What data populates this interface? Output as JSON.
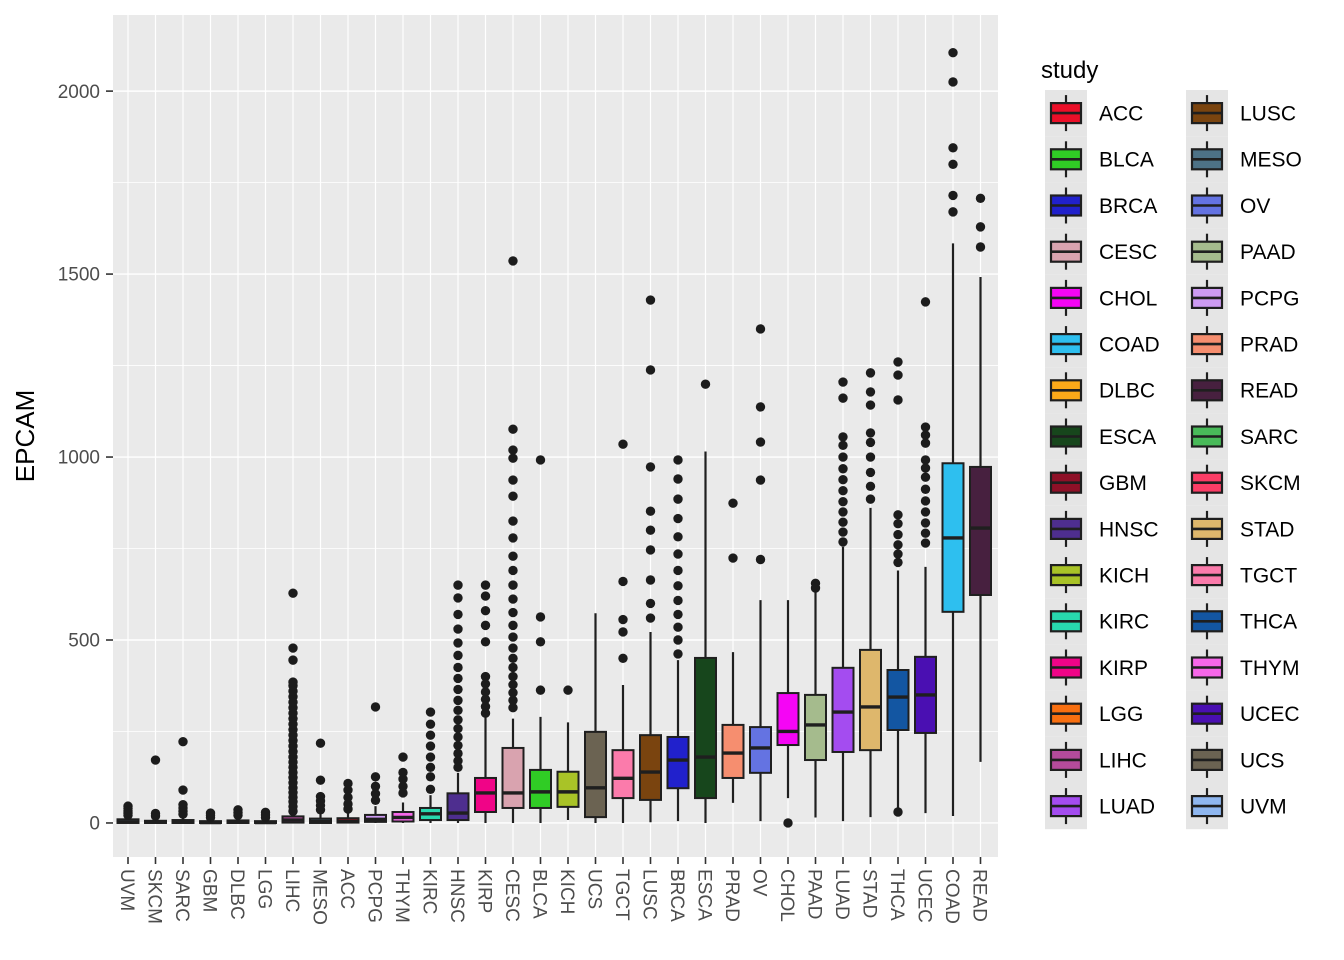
{
  "chart_data": {
    "type": "boxplot",
    "title": "",
    "xlabel": "",
    "ylabel": "EPCAM",
    "legend_title": "study",
    "legend_position": "right",
    "ylim": [
      -93,
      2208
    ],
    "yticks": [
      0,
      500,
      1000,
      1500,
      2000
    ],
    "yminor": [
      250,
      750,
      1250,
      1750
    ],
    "grid": true,
    "panel_background": "#EAEAEA",
    "grid_color": "#FFFFFF",
    "legend_key_background": "#E5E5E5",
    "box_stroke_color": "#1F1F1F",
    "outlier_color": "#1C1C1C",
    "axis_text_color": "#4D4D4D",
    "axis_title_color": "#000000",
    "studies": [
      {
        "label": "UVM",
        "color": "#8FB7F0",
        "whisker_low": 0,
        "q1": 0,
        "median": 3,
        "q3": 10,
        "whisker_high": 20,
        "outliers": [
          21,
          27,
          33,
          40,
          46
        ]
      },
      {
        "label": "SKCM",
        "color": "#FB3D66",
        "whisker_low": 0,
        "q1": 0,
        "median": 2,
        "q3": 6,
        "whisker_high": 13,
        "outliers": [
          19,
          26,
          172
        ]
      },
      {
        "label": "SARC",
        "color": "#49BA59",
        "whisker_low": 0,
        "q1": 0,
        "median": 2,
        "q3": 8,
        "whisker_high": 17,
        "outliers": [
          24,
          32,
          41,
          50,
          90,
          222
        ]
      },
      {
        "label": "GBM",
        "color": "#8E1027",
        "whisker_low": 0,
        "q1": 0,
        "median": 1,
        "q3": 5,
        "whisker_high": 11,
        "outliers": [
          15,
          21,
          27
        ]
      },
      {
        "label": "DLBC",
        "color": "#FBA919",
        "whisker_low": 0,
        "q1": 0,
        "median": 2,
        "q3": 7,
        "whisker_high": 15,
        "outliers": [
          21,
          28,
          36
        ]
      },
      {
        "label": "LGG",
        "color": "#F86F10",
        "whisker_low": 0,
        "q1": 0,
        "median": 1,
        "q3": 5,
        "whisker_high": 11,
        "outliers": [
          15,
          22,
          29
        ]
      },
      {
        "label": "LIHC",
        "color": "#B44B9B",
        "whisker_low": 0,
        "q1": 1,
        "median": 8,
        "q3": 18,
        "whisker_high": 30,
        "outliers": [
          32,
          45,
          58,
          70,
          83,
          96,
          110,
          124,
          138,
          152,
          166,
          180,
          195,
          210,
          225,
          240,
          255,
          270,
          285,
          300,
          315,
          330,
          345,
          360,
          375,
          385,
          445,
          478,
          628
        ]
      },
      {
        "label": "MESO",
        "color": "#4D7286",
        "whisker_low": 0,
        "q1": 0,
        "median": 4,
        "q3": 12,
        "whisker_high": 26,
        "outliers": [
          36,
          48,
          60,
          72,
          117,
          218
        ]
      },
      {
        "label": "ACC",
        "color": "#EB0F28",
        "whisker_low": 0,
        "q1": 1,
        "median": 5,
        "q3": 13,
        "whisker_high": 27,
        "outliers": [
          38,
          52,
          70,
          90,
          108
        ]
      },
      {
        "label": "PCPG",
        "color": "#CD9BF2",
        "whisker_low": 0,
        "q1": 3,
        "median": 10,
        "q3": 22,
        "whisker_high": 46,
        "outliers": [
          62,
          80,
          100,
          126,
          317
        ]
      },
      {
        "label": "THYM",
        "color": "#F667E9",
        "whisker_low": 0,
        "q1": 4,
        "median": 15,
        "q3": 30,
        "whisker_high": 56,
        "outliers": [
          82,
          100,
          120,
          138,
          180
        ]
      },
      {
        "label": "KIRC",
        "color": "#28D8AE",
        "whisker_low": 0,
        "q1": 8,
        "median": 25,
        "q3": 41,
        "whisker_high": 76,
        "outliers": [
          92,
          126,
          152,
          180,
          210,
          240,
          270,
          303
        ]
      },
      {
        "label": "HNSC",
        "color": "#4E2E8F",
        "whisker_low": 0,
        "q1": 8,
        "median": 27,
        "q3": 81,
        "whisker_high": 137,
        "outliers": [
          152,
          170,
          190,
          212,
          235,
          258,
          282,
          308,
          335,
          365,
          395,
          425,
          458,
          492,
          530,
          570,
          615,
          650
        ]
      },
      {
        "label": "KIRP",
        "color": "#F00487",
        "whisker_low": 0,
        "q1": 30,
        "median": 82,
        "q3": 123,
        "whisker_high": 290,
        "outliers": [
          300,
          318,
          338,
          358,
          380,
          400,
          495,
          540,
          580,
          620,
          650
        ]
      },
      {
        "label": "CESC",
        "color": "#D9A3AF",
        "whisker_low": 0,
        "q1": 41,
        "median": 82,
        "q3": 205,
        "whisker_high": 285,
        "outliers": [
          315,
          335,
          356,
          378,
          400,
          425,
          450,
          478,
          508,
          540,
          575,
          612,
          650,
          690,
          729,
          779,
          825,
          893,
          937,
          997,
          1019,
          1076,
          1536
        ]
      },
      {
        "label": "BLCA",
        "color": "#30CC25",
        "whisker_low": 0,
        "q1": 41,
        "median": 85,
        "q3": 145,
        "whisker_high": 290,
        "outliers": [
          363,
          495,
          563,
          992
        ]
      },
      {
        "label": "KICH",
        "color": "#A9C327",
        "whisker_low": 8,
        "q1": 44,
        "median": 85,
        "q3": 140,
        "whisker_high": 275,
        "outliers": [
          363
        ]
      },
      {
        "label": "UCS",
        "color": "#6B6352",
        "whisker_low": 0,
        "q1": 16,
        "median": 96,
        "q3": 249,
        "whisker_high": 573,
        "outliers": []
      },
      {
        "label": "TGCT",
        "color": "#FB7BAB",
        "whisker_low": 0,
        "q1": 68,
        "median": 122,
        "q3": 199,
        "whisker_high": 377,
        "outliers": [
          450,
          522,
          556,
          660,
          1035
        ]
      },
      {
        "label": "LUSC",
        "color": "#7A440F",
        "whisker_low": 2,
        "q1": 63,
        "median": 139,
        "q3": 240,
        "whisker_high": 522,
        "outliers": [
          560,
          600,
          664,
          746,
          800,
          852,
          973,
          1238,
          1429
        ]
      },
      {
        "label": "BRCA",
        "color": "#2121CC",
        "whisker_low": 5,
        "q1": 95,
        "median": 172,
        "q3": 235,
        "whisker_high": 445,
        "outliers": [
          462,
          500,
          535,
          570,
          608,
          648,
          690,
          735,
          782,
          832,
          885,
          940,
          992
        ]
      },
      {
        "label": "ESCA",
        "color": "#17461C",
        "whisker_low": 0,
        "q1": 68,
        "median": 180,
        "q3": 451,
        "whisker_high": 1015,
        "outliers": [
          1199
        ]
      },
      {
        "label": "PRAD",
        "color": "#F68E6F",
        "whisker_low": 55,
        "q1": 123,
        "median": 191,
        "q3": 268,
        "whisker_high": 467,
        "outliers": [
          724,
          874
        ]
      },
      {
        "label": "OV",
        "color": "#6473E2",
        "whisker_low": 5,
        "q1": 137,
        "median": 205,
        "q3": 262,
        "whisker_high": 609,
        "outliers": [
          720,
          937,
          1041,
          1137,
          1350
        ]
      },
      {
        "label": "CHOL",
        "color": "#F505F5",
        "whisker_low": 68,
        "q1": 213,
        "median": 250,
        "q3": 355,
        "whisker_high": 609,
        "outliers": [
          0
        ]
      },
      {
        "label": "PAAD",
        "color": "#A5BB8D",
        "whisker_low": 15,
        "q1": 172,
        "median": 268,
        "q3": 350,
        "whisker_high": 637,
        "outliers": [
          642,
          655
        ]
      },
      {
        "label": "LUAD",
        "color": "#A44CF0",
        "whisker_low": 5,
        "q1": 194,
        "median": 303,
        "q3": 424,
        "whisker_high": 755,
        "outliers": [
          768,
          795,
          822,
          850,
          878,
          908,
          938,
          968,
          1000,
          1032,
          1055,
          1161,
          1205
        ]
      },
      {
        "label": "STAD",
        "color": "#DEB76C",
        "whisker_low": 16,
        "q1": 199,
        "median": 317,
        "q3": 473,
        "whisker_high": 861,
        "outliers": [
          885,
          920,
          958,
          1000,
          1040,
          1066,
          1142,
          1178,
          1230
        ]
      },
      {
        "label": "THCA",
        "color": "#1356A2",
        "whisker_low": 40,
        "q1": 254,
        "median": 344,
        "q3": 418,
        "whisker_high": 690,
        "outliers": [
          30,
          712,
          735,
          760,
          788,
          818,
          842,
          1156,
          1224,
          1260
        ]
      },
      {
        "label": "UCEC",
        "color": "#4A0FB2",
        "whisker_low": 27,
        "q1": 246,
        "median": 350,
        "q3": 454,
        "whisker_high": 700,
        "outliers": [
          765,
          792,
          820,
          850,
          880,
          912,
          945,
          970,
          992,
          1038,
          1060,
          1082,
          1424
        ]
      },
      {
        "label": "COAD",
        "color": "#2EBFEF",
        "whisker_low": 19,
        "q1": 577,
        "median": 779,
        "q3": 983,
        "whisker_high": 1584,
        "outliers": [
          1670,
          1715,
          1800,
          1845,
          2025,
          2105
        ]
      },
      {
        "label": "READ",
        "color": "#47203F",
        "whisker_low": 167,
        "q1": 623,
        "median": 806,
        "q3": 973,
        "whisker_high": 1492,
        "outliers": [
          1574,
          1629,
          1707
        ]
      }
    ]
  }
}
